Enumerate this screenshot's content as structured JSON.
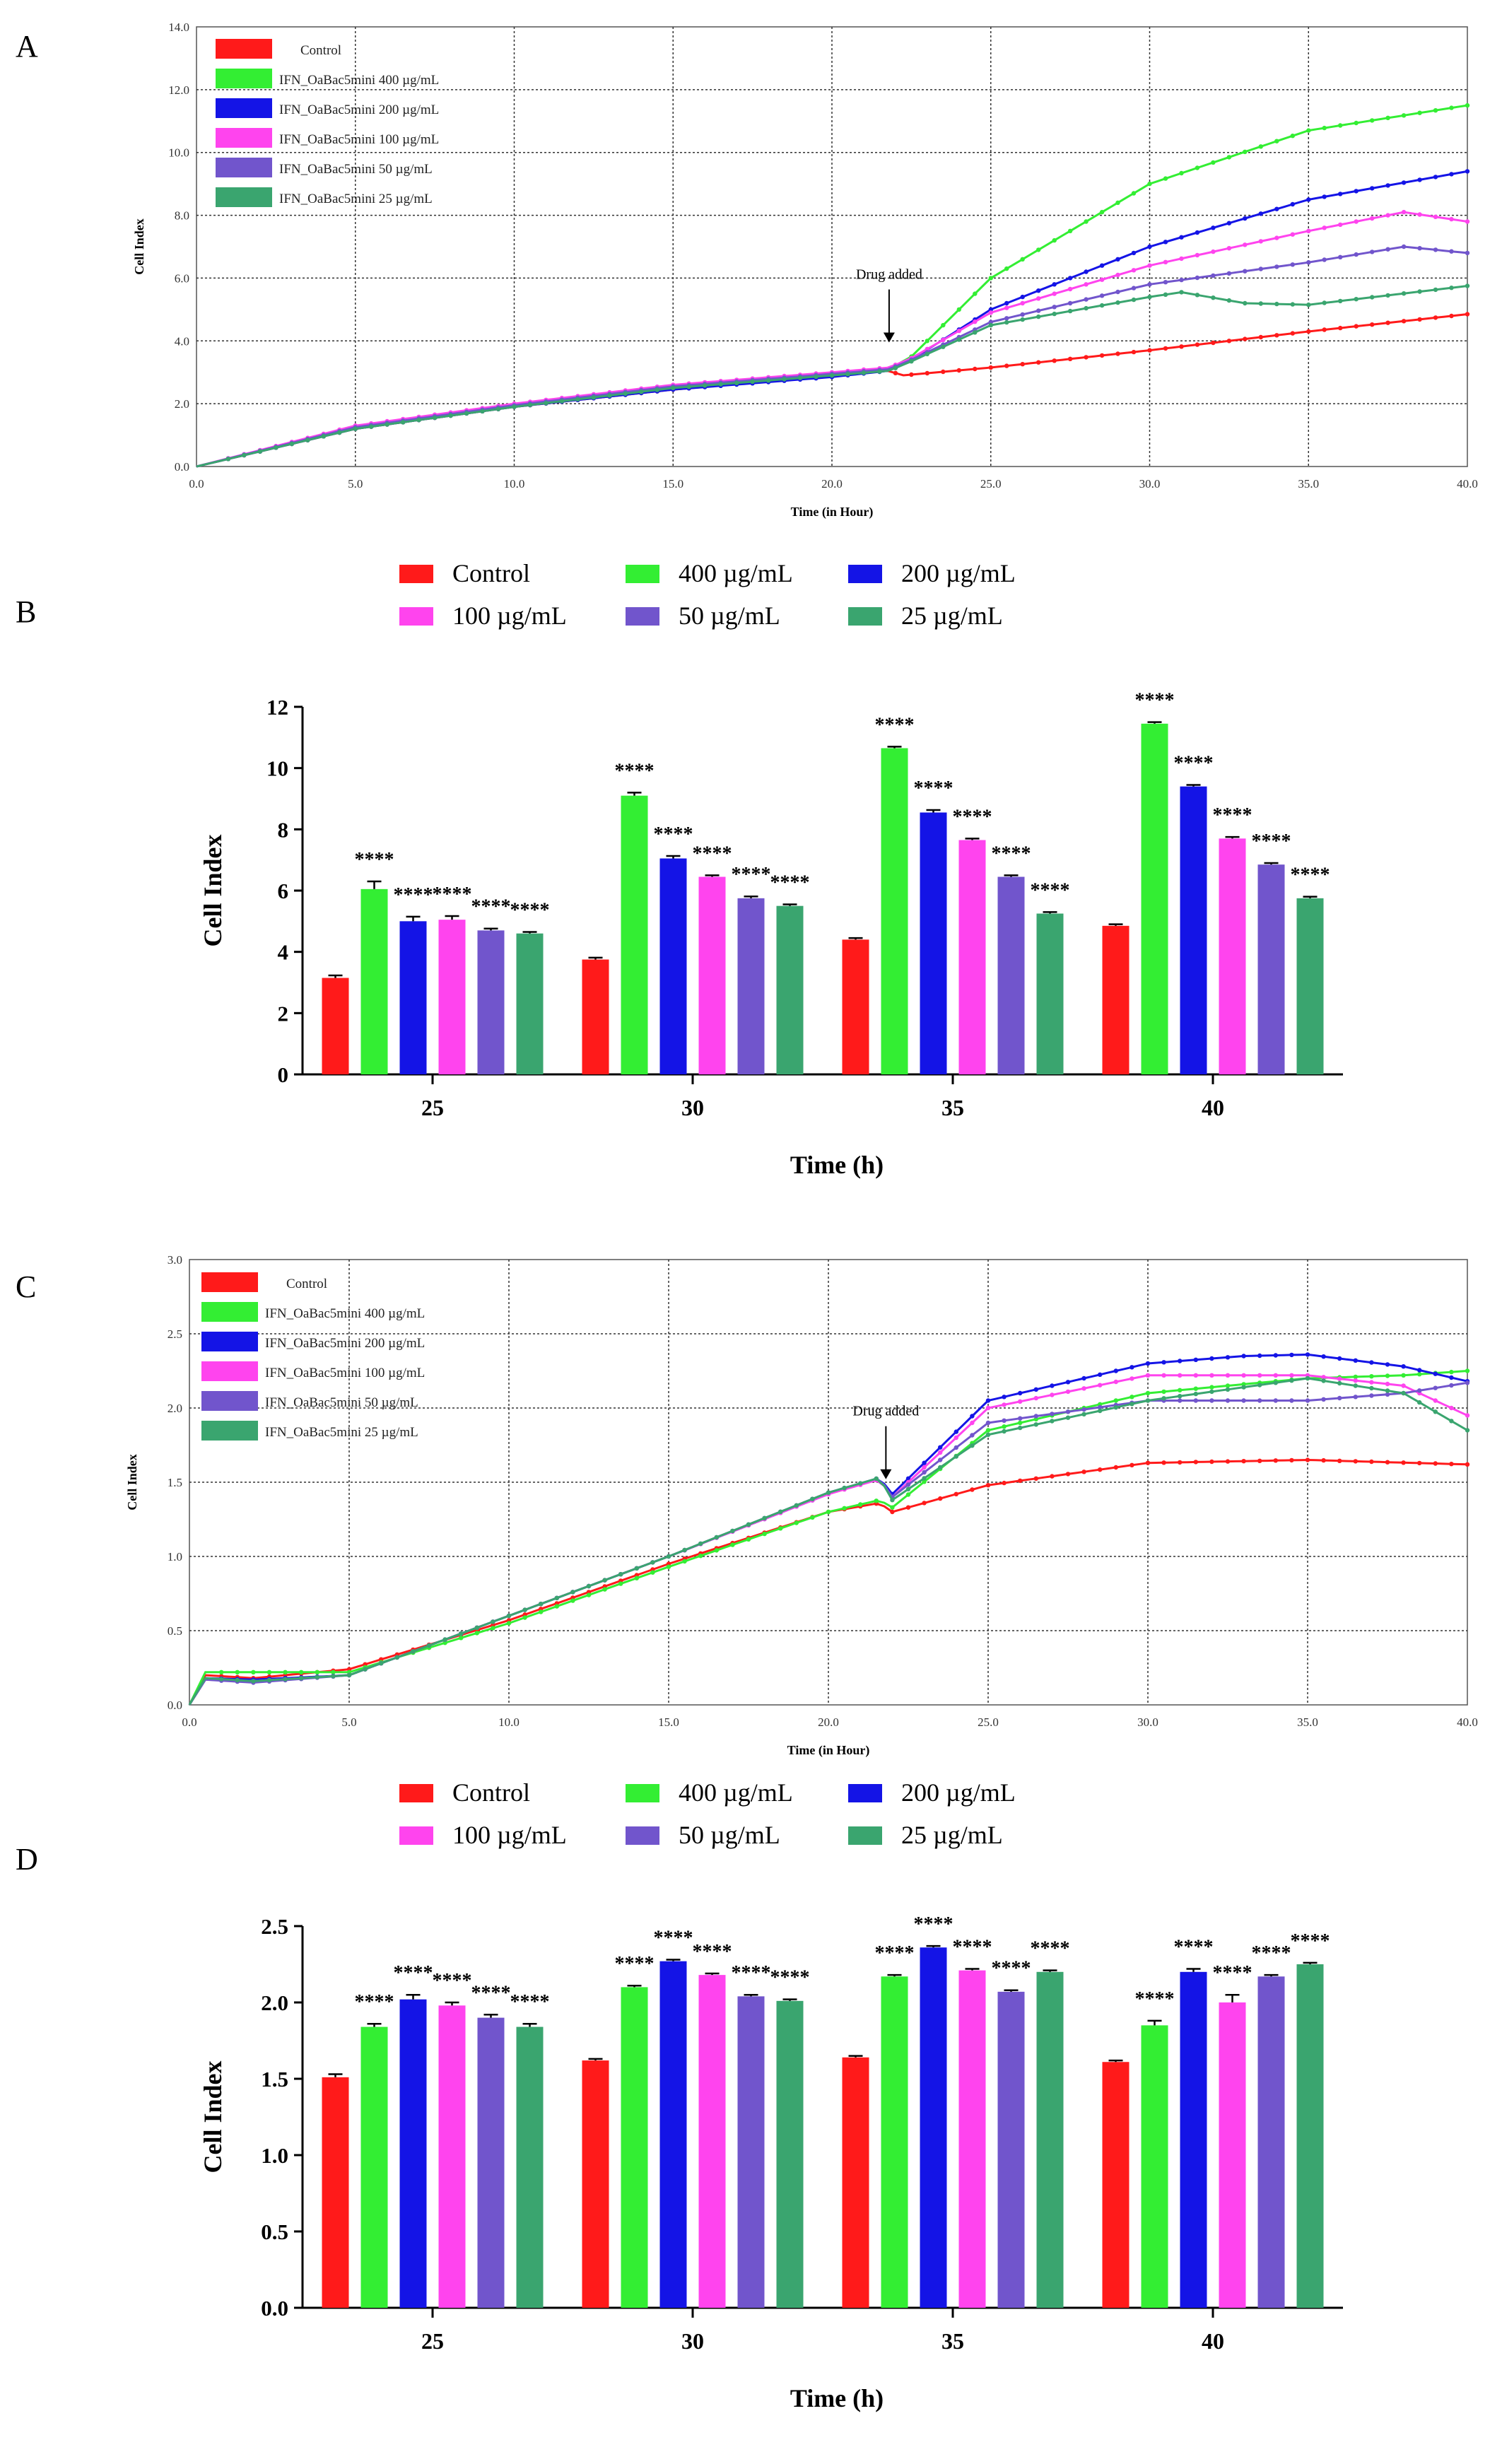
{
  "panel_labels": [
    "A",
    "B",
    "C",
    "D"
  ],
  "colors": {
    "control": "#ff1a1a",
    "c400": "#33ee33",
    "c200": "#1414e6",
    "c100": "#ff44ee",
    "c50": "#7155cc",
    "c25": "#3aa56f"
  },
  "chart_data": [
    {
      "panel": "A",
      "type": "line",
      "title": "",
      "xlabel": "Time (in Hour)",
      "ylabel": "Cell Index",
      "xlim": [
        0,
        40
      ],
      "ylim": [
        0,
        14
      ],
      "xticks": [
        "0.0",
        "5.0",
        "10.0",
        "15.0",
        "20.0",
        "25.0",
        "30.0",
        "35.0",
        "40.0"
      ],
      "yticks": [
        "0.0",
        "2.0",
        "4.0",
        "6.0",
        "8.0",
        "10.0",
        "12.0",
        "14.0"
      ],
      "grid": true,
      "legend_position": "top-left",
      "annotation": {
        "text": "Drug added",
        "x": 21.8
      },
      "series": [
        {
          "name": "Control",
          "color_key": "control",
          "x": [
            0,
            5,
            10,
            15,
            20,
            21.8,
            22.2,
            25,
            30,
            35,
            40
          ],
          "values": [
            0,
            1.2,
            1.9,
            2.45,
            2.9,
            3.05,
            2.9,
            3.15,
            3.7,
            4.3,
            4.85
          ]
        },
        {
          "name": "IFN_OaBac5mini 400 µg/mL",
          "color_key": "c400",
          "x": [
            0,
            5,
            10,
            15,
            20,
            21.8,
            22.5,
            25,
            30,
            35,
            40
          ],
          "values": [
            0,
            1.25,
            1.95,
            2.5,
            2.9,
            3.1,
            3.5,
            6.0,
            9.0,
            10.7,
            11.5
          ]
        },
        {
          "name": "IFN_OaBac5mini 200 µg/mL",
          "color_key": "c200",
          "x": [
            0,
            5,
            10,
            15,
            20,
            21.8,
            22.5,
            25,
            30,
            35,
            40
          ],
          "values": [
            0,
            1.2,
            1.9,
            2.45,
            2.85,
            3.05,
            3.4,
            5.0,
            7.0,
            8.5,
            9.4
          ]
        },
        {
          "name": "IFN_OaBac5mini 100 µg/mL",
          "color_key": "c100",
          "x": [
            0,
            5,
            10,
            15,
            20,
            21.8,
            22.5,
            25,
            30,
            35,
            38,
            40
          ],
          "values": [
            0,
            1.3,
            2.0,
            2.6,
            3.0,
            3.15,
            3.45,
            4.9,
            6.4,
            7.5,
            8.1,
            7.8
          ]
        },
        {
          "name": "IFN_OaBac5mini 50 µg/mL",
          "color_key": "c50",
          "x": [
            0,
            5,
            10,
            15,
            20,
            21.8,
            22.5,
            25,
            30,
            35,
            38,
            40
          ],
          "values": [
            0,
            1.25,
            1.95,
            2.55,
            2.95,
            3.1,
            3.4,
            4.6,
            5.8,
            6.5,
            7.0,
            6.8
          ]
        },
        {
          "name": "IFN_OaBac5mini 25 µg/mL",
          "color_key": "c25",
          "x": [
            0,
            5,
            10,
            15,
            20,
            21.8,
            22.5,
            25,
            30,
            31,
            33,
            35,
            40
          ],
          "values": [
            0,
            1.2,
            1.9,
            2.5,
            2.9,
            3.05,
            3.35,
            4.5,
            5.4,
            5.55,
            5.2,
            5.15,
            5.75
          ]
        }
      ]
    },
    {
      "panel": "B",
      "type": "bar",
      "xlabel": "Time (h)",
      "ylabel": "Cell Index",
      "ylim": [
        0,
        12
      ],
      "yticks": [
        "0",
        "2",
        "4",
        "6",
        "8",
        "10",
        "12"
      ],
      "categories": [
        "25",
        "30",
        "35",
        "40"
      ],
      "legend_position": "top",
      "significance_label": "****",
      "series": [
        {
          "name": "Control",
          "color_key": "control",
          "values": [
            3.15,
            3.75,
            4.4,
            4.85
          ],
          "errors": [
            0.08,
            0.06,
            0.05,
            0.05
          ]
        },
        {
          "name": "400 µg/mL",
          "color_key": "c400",
          "values": [
            6.05,
            9.1,
            10.65,
            11.45
          ],
          "errors": [
            0.25,
            0.1,
            0.05,
            0.05
          ]
        },
        {
          "name": "200 µg/mL",
          "color_key": "c200",
          "values": [
            5.0,
            7.05,
            8.55,
            9.4
          ],
          "errors": [
            0.15,
            0.08,
            0.08,
            0.05
          ]
        },
        {
          "name": "100 µg/mL",
          "color_key": "c100",
          "values": [
            5.05,
            6.45,
            7.65,
            7.7
          ],
          "errors": [
            0.12,
            0.05,
            0.05,
            0.05
          ]
        },
        {
          "name": "50 µg/mL",
          "color_key": "c50",
          "values": [
            4.7,
            5.75,
            6.45,
            6.85
          ],
          "errors": [
            0.06,
            0.06,
            0.05,
            0.05
          ]
        },
        {
          "name": "25 µg/mL",
          "color_key": "c25",
          "values": [
            4.6,
            5.5,
            5.25,
            5.75
          ],
          "errors": [
            0.05,
            0.05,
            0.05,
            0.05
          ]
        }
      ]
    },
    {
      "panel": "C",
      "type": "line",
      "xlabel": "Time (in Hour)",
      "ylabel": "Cell Index",
      "xlim": [
        0,
        40
      ],
      "ylim": [
        0,
        3
      ],
      "xticks": [
        "0.0",
        "5.0",
        "10.0",
        "15.0",
        "20.0",
        "25.0",
        "30.0",
        "35.0",
        "40.0"
      ],
      "yticks": [
        "0.0",
        "0.5",
        "1.0",
        "1.5",
        "2.0",
        "2.5",
        "3.0"
      ],
      "grid": true,
      "legend_position": "top-left",
      "annotation": {
        "text": "Drug added",
        "x": 21.8
      },
      "series": [
        {
          "name": "Control",
          "color_key": "control",
          "x": [
            0,
            0.5,
            2,
            5,
            10,
            15,
            20,
            21.6,
            22,
            25,
            30,
            35,
            40
          ],
          "values": [
            0,
            0.2,
            0.18,
            0.24,
            0.57,
            0.95,
            1.3,
            1.36,
            1.3,
            1.48,
            1.63,
            1.65,
            1.62
          ]
        },
        {
          "name": "IFN_OaBac5mini 400 µg/mL",
          "color_key": "c400",
          "x": [
            0,
            0.5,
            2,
            5,
            10,
            15,
            20,
            21.6,
            22,
            25,
            30,
            35,
            38,
            40
          ],
          "values": [
            0,
            0.22,
            0.22,
            0.22,
            0.55,
            0.93,
            1.3,
            1.38,
            1.33,
            1.85,
            2.1,
            2.2,
            2.22,
            2.25
          ]
        },
        {
          "name": "IFN_OaBac5mini 200 µg/mL",
          "color_key": "c200",
          "x": [
            0,
            0.5,
            2,
            5,
            10,
            15,
            20,
            21.6,
            22,
            25,
            30,
            33,
            35,
            38,
            40
          ],
          "values": [
            0,
            0.18,
            0.17,
            0.2,
            0.6,
            1.0,
            1.42,
            1.53,
            1.42,
            2.05,
            2.3,
            2.35,
            2.36,
            2.28,
            2.18
          ]
        },
        {
          "name": "IFN_OaBac5mini 100 µg/mL",
          "color_key": "c100",
          "x": [
            0,
            0.5,
            2,
            5,
            10,
            15,
            20,
            21.6,
            22,
            25,
            30,
            35,
            38,
            40
          ],
          "values": [
            0,
            0.17,
            0.16,
            0.2,
            0.6,
            1.0,
            1.42,
            1.52,
            1.4,
            2.0,
            2.22,
            2.22,
            2.15,
            1.95
          ]
        },
        {
          "name": "IFN_OaBac5mini 50 µg/mL",
          "color_key": "c50",
          "x": [
            0,
            0.5,
            2,
            5,
            10,
            15,
            20,
            21.6,
            22,
            25,
            30,
            35,
            38,
            40
          ],
          "values": [
            0,
            0.17,
            0.15,
            0.2,
            0.6,
            1.0,
            1.43,
            1.53,
            1.4,
            1.9,
            2.05,
            2.05,
            2.1,
            2.17
          ]
        },
        {
          "name": "IFN_OaBac5mini 25 µg/mL",
          "color_key": "c25",
          "x": [
            0,
            0.5,
            2,
            5,
            10,
            15,
            20,
            21.6,
            22,
            25,
            30,
            35,
            38,
            40
          ],
          "values": [
            0,
            0.18,
            0.16,
            0.2,
            0.6,
            1.0,
            1.43,
            1.53,
            1.38,
            1.82,
            2.05,
            2.2,
            2.1,
            1.85
          ]
        }
      ]
    },
    {
      "panel": "D",
      "type": "bar",
      "xlabel": "Time (h)",
      "ylabel": "Cell Index",
      "ylim": [
        0,
        2.5
      ],
      "yticks": [
        "0.0",
        "0.5",
        "1.0",
        "1.5",
        "2.0",
        "2.5"
      ],
      "categories": [
        "25",
        "30",
        "35",
        "40"
      ],
      "legend_position": "top",
      "significance_label": "****",
      "series": [
        {
          "name": "Control",
          "color_key": "control",
          "values": [
            1.51,
            1.62,
            1.64,
            1.61
          ],
          "errors": [
            0.02,
            0.01,
            0.01,
            0.01
          ]
        },
        {
          "name": "400 µg/mL",
          "color_key": "c400",
          "values": [
            1.84,
            2.1,
            2.17,
            1.85
          ],
          "errors": [
            0.02,
            0.01,
            0.01,
            0.03
          ]
        },
        {
          "name": "200  µg/mL",
          "color_key": "c200",
          "values": [
            2.02,
            2.27,
            2.36,
            2.2
          ],
          "errors": [
            0.03,
            0.01,
            0.01,
            0.02
          ]
        },
        {
          "name": "100  µg/mL",
          "color_key": "c100",
          "values": [
            1.98,
            2.18,
            2.21,
            2.0
          ],
          "errors": [
            0.02,
            0.01,
            0.01,
            0.05
          ]
        },
        {
          "name": "50  µg/mL",
          "color_key": "c50",
          "values": [
            1.9,
            2.04,
            2.07,
            2.17
          ],
          "errors": [
            0.02,
            0.01,
            0.01,
            0.01
          ]
        },
        {
          "name": "25  µg/mL",
          "color_key": "c25",
          "values": [
            1.84,
            2.01,
            2.2,
            2.25
          ],
          "errors": [
            0.02,
            0.01,
            0.01,
            0.01
          ]
        }
      ]
    }
  ]
}
